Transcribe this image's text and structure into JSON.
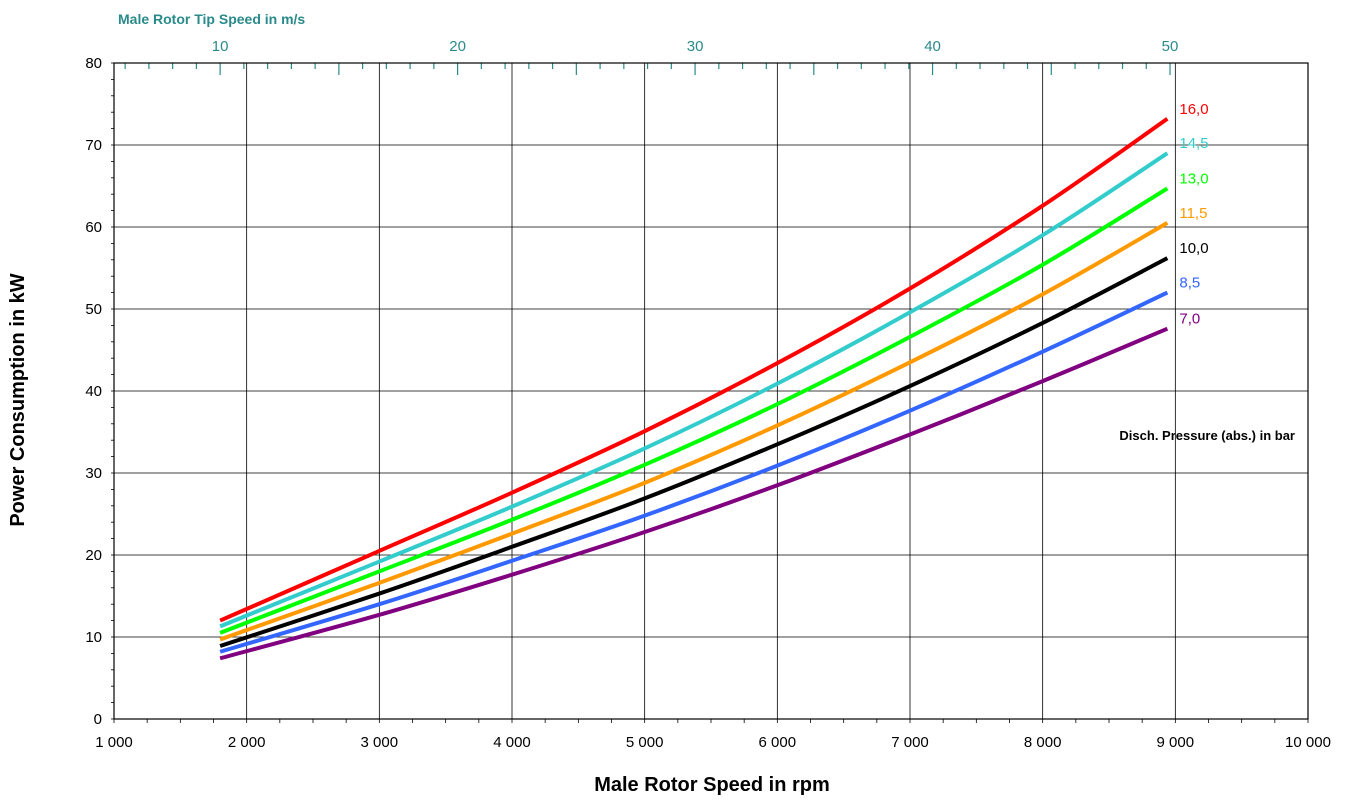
{
  "chart_data": {
    "type": "line",
    "xlabel": "Male Rotor Speed in rpm",
    "ylabel": "Power Consumption in kW",
    "top_axis_label": "Male Rotor Tip Speed in m/s",
    "legend_title": "Disch. Pressure (abs.) in bar",
    "xlim": [
      1000,
      10000
    ],
    "ylim": [
      0,
      80
    ],
    "x_ticks": [
      1000,
      2000,
      3000,
      4000,
      5000,
      6000,
      7000,
      8000,
      9000,
      10000
    ],
    "x_tick_labels": [
      "1 000",
      "2 000",
      "3 000",
      "4 000",
      "5 000",
      "6 000",
      "7 000",
      "8 000",
      "9 000",
      "10 000"
    ],
    "y_ticks": [
      0,
      10,
      20,
      30,
      40,
      50,
      60,
      70,
      80
    ],
    "y_tick_labels": [
      "0",
      "10",
      "20",
      "30",
      "40",
      "50",
      "60",
      "70",
      "80"
    ],
    "top_ticks": [
      {
        "rpm": 1800,
        "label": "10"
      },
      {
        "rpm": 3590,
        "label": "20"
      },
      {
        "rpm": 5380,
        "label": "30"
      },
      {
        "rpm": 7170,
        "label": "40"
      },
      {
        "rpm": 8960,
        "label": "50"
      }
    ],
    "grid": true,
    "x": [
      1800,
      3000,
      4000,
      5000,
      6000,
      7000,
      8000,
      8940
    ],
    "series": [
      {
        "name": "16,0",
        "color": "#ff0000",
        "values": [
          12.0,
          20.5,
          27.6,
          35.1,
          43.4,
          52.5,
          62.6,
          73.2
        ]
      },
      {
        "name": "14,5",
        "color": "#33cccc",
        "values": [
          11.3,
          19.2,
          25.9,
          33.0,
          40.9,
          49.6,
          59.0,
          69.0
        ]
      },
      {
        "name": "13,0",
        "color": "#00ff00",
        "values": [
          10.5,
          18.0,
          24.3,
          31.0,
          38.4,
          46.6,
          55.4,
          64.7
        ]
      },
      {
        "name": "11,5",
        "color": "#ff9900",
        "values": [
          9.7,
          16.6,
          22.6,
          28.8,
          35.8,
          43.5,
          51.8,
          60.5
        ]
      },
      {
        "name": "10,0",
        "color": "#000000",
        "values": [
          8.9,
          15.3,
          21.0,
          26.9,
          33.5,
          40.6,
          48.3,
          56.2
        ]
      },
      {
        "name": "8,5",
        "color": "#3366ff",
        "values": [
          8.2,
          14.0,
          19.3,
          24.8,
          30.9,
          37.6,
          44.8,
          52.0
        ]
      },
      {
        "name": "7,0",
        "color": "#800080",
        "values": [
          7.4,
          12.7,
          17.6,
          22.8,
          28.5,
          34.7,
          41.2,
          47.6
        ]
      }
    ]
  }
}
